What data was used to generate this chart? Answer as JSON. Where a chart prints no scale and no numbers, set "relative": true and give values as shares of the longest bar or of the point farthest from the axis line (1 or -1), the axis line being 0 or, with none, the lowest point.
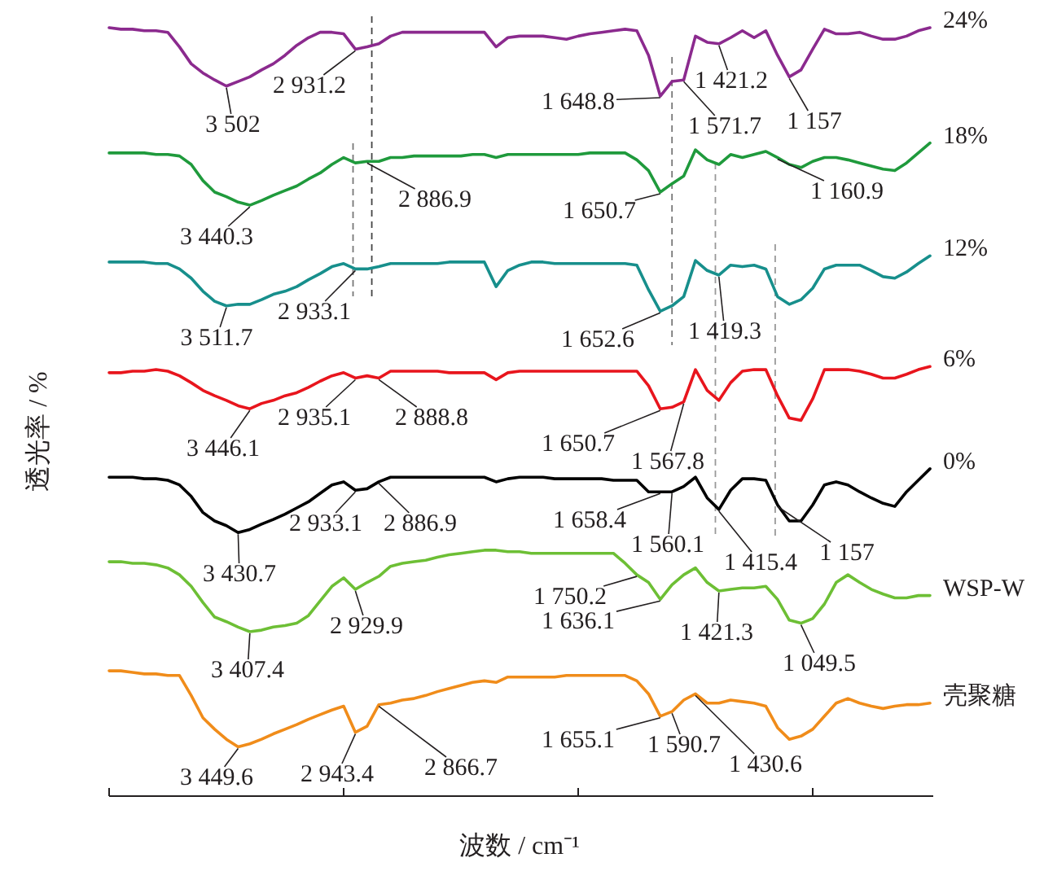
{
  "chart_data": {
    "type": "line",
    "xlabel": "波数 / cm⁻¹",
    "ylabel": "透光率 / %",
    "relative": true,
    "grid": false,
    "legend": false,
    "marker": "none",
    "line_style": "solid",
    "categories": [
      null,
      null,
      null,
      null,
      null,
      null,
      null,
      null,
      null,
      null,
      null,
      null,
      null,
      null,
      null,
      null,
      null,
      null,
      null,
      null,
      null,
      null,
      null,
      null,
      null,
      null,
      null,
      null,
      null,
      null,
      null,
      null,
      null,
      null,
      null,
      null,
      null,
      null,
      null,
      null,
      null,
      null,
      null,
      null,
      null,
      null,
      null,
      null,
      null,
      null,
      null,
      null,
      null,
      null,
      null,
      null,
      null,
      null,
      null,
      null,
      null,
      null,
      null,
      null,
      null,
      null,
      null,
      null,
      null,
      null,
      null
    ],
    "series": [
      {
        "name": "24%",
        "color": "#8b2a8e",
        "values": [
          1.0,
          0.998,
          0.998,
          0.996,
          0.996,
          0.994,
          0.975,
          0.953,
          0.941,
          0.932,
          0.924,
          0.93,
          0.936,
          0.945,
          0.953,
          0.964,
          0.977,
          0.987,
          0.994,
          0.994,
          0.992,
          0.972,
          0.975,
          0.979,
          0.989,
          0.994,
          0.994,
          0.994,
          0.994,
          0.994,
          0.994,
          0.994,
          0.994,
          0.975,
          0.987,
          0.989,
          0.989,
          0.989,
          0.987,
          0.985,
          0.989,
          0.992,
          0.994,
          0.996,
          0.998,
          0.996,
          0.964,
          0.911,
          0.93,
          0.932,
          0.989,
          0.981,
          0.979,
          0.987,
          0.996,
          0.987,
          0.996,
          0.964,
          0.936,
          0.945,
          0.972,
          0.998,
          0.992,
          0.992,
          0.994,
          0.989,
          0.985,
          0.985,
          0.989,
          0.996,
          1.0
        ]
      },
      {
        "name": "18%",
        "color": "#1f9a3c",
        "values": [
          0.837,
          0.837,
          0.837,
          0.837,
          0.835,
          0.835,
          0.833,
          0.822,
          0.801,
          0.786,
          0.78,
          0.773,
          0.769,
          0.775,
          0.782,
          0.788,
          0.794,
          0.803,
          0.811,
          0.822,
          0.831,
          0.824,
          0.826,
          0.826,
          0.831,
          0.831,
          0.833,
          0.833,
          0.833,
          0.833,
          0.833,
          0.835,
          0.835,
          0.831,
          0.835,
          0.835,
          0.835,
          0.835,
          0.835,
          0.835,
          0.835,
          0.837,
          0.837,
          0.837,
          0.837,
          0.828,
          0.814,
          0.786,
          0.797,
          0.807,
          0.841,
          0.828,
          0.822,
          0.835,
          0.831,
          0.835,
          0.839,
          0.831,
          0.822,
          0.818,
          0.826,
          0.831,
          0.831,
          0.828,
          0.824,
          0.82,
          0.816,
          0.814,
          0.824,
          0.837,
          0.85
        ]
      },
      {
        "name": "12%",
        "color": "#178f8c",
        "values": [
          0.695,
          0.695,
          0.695,
          0.695,
          0.693,
          0.693,
          0.686,
          0.674,
          0.657,
          0.644,
          0.638,
          0.64,
          0.64,
          0.646,
          0.653,
          0.657,
          0.663,
          0.672,
          0.68,
          0.689,
          0.693,
          0.686,
          0.686,
          0.689,
          0.693,
          0.693,
          0.693,
          0.693,
          0.693,
          0.695,
          0.695,
          0.695,
          0.695,
          0.663,
          0.684,
          0.691,
          0.695,
          0.695,
          0.693,
          0.693,
          0.693,
          0.693,
          0.693,
          0.693,
          0.693,
          0.691,
          0.659,
          0.631,
          0.638,
          0.65,
          0.697,
          0.684,
          0.678,
          0.691,
          0.689,
          0.691,
          0.686,
          0.65,
          0.64,
          0.646,
          0.661,
          0.686,
          0.691,
          0.691,
          0.691,
          0.684,
          0.676,
          0.674,
          0.682,
          0.693,
          0.703
        ]
      },
      {
        "name": "6%",
        "color": "#e8151d",
        "values": [
          0.551,
          0.551,
          0.553,
          0.553,
          0.555,
          0.553,
          0.547,
          0.538,
          0.528,
          0.521,
          0.515,
          0.508,
          0.504,
          0.511,
          0.515,
          0.521,
          0.525,
          0.532,
          0.54,
          0.547,
          0.551,
          0.544,
          0.547,
          0.544,
          0.553,
          0.553,
          0.553,
          0.553,
          0.553,
          0.551,
          0.551,
          0.551,
          0.551,
          0.542,
          0.551,
          0.553,
          0.553,
          0.553,
          0.553,
          0.553,
          0.553,
          0.553,
          0.553,
          0.553,
          0.553,
          0.553,
          0.534,
          0.504,
          0.506,
          0.513,
          0.555,
          0.528,
          0.515,
          0.538,
          0.553,
          0.555,
          0.555,
          0.521,
          0.492,
          0.489,
          0.517,
          0.555,
          0.555,
          0.555,
          0.553,
          0.549,
          0.544,
          0.544,
          0.549,
          0.555,
          0.559
        ]
      },
      {
        "name": "0%",
        "color": "#000000",
        "values": [
          0.415,
          0.415,
          0.415,
          0.413,
          0.413,
          0.411,
          0.405,
          0.39,
          0.369,
          0.358,
          0.352,
          0.343,
          0.347,
          0.354,
          0.36,
          0.367,
          0.375,
          0.383,
          0.394,
          0.405,
          0.409,
          0.398,
          0.4,
          0.409,
          0.415,
          0.415,
          0.415,
          0.415,
          0.415,
          0.415,
          0.415,
          0.415,
          0.415,
          0.409,
          0.413,
          0.415,
          0.415,
          0.415,
          0.413,
          0.413,
          0.413,
          0.413,
          0.413,
          0.411,
          0.411,
          0.411,
          0.396,
          0.396,
          0.396,
          0.403,
          0.415,
          0.388,
          0.373,
          0.398,
          0.413,
          0.413,
          0.411,
          0.379,
          0.358,
          0.358,
          0.379,
          0.405,
          0.409,
          0.405,
          0.396,
          0.388,
          0.381,
          0.377,
          0.396,
          0.411,
          0.426
        ]
      },
      {
        "name": "WSP-W",
        "color": "#6dbf35",
        "values": [
          0.305,
          0.305,
          0.303,
          0.303,
          0.301,
          0.297,
          0.288,
          0.273,
          0.252,
          0.233,
          0.227,
          0.22,
          0.214,
          0.216,
          0.22,
          0.222,
          0.225,
          0.235,
          0.254,
          0.273,
          0.284,
          0.269,
          0.278,
          0.286,
          0.299,
          0.303,
          0.305,
          0.307,
          0.311,
          0.314,
          0.316,
          0.318,
          0.32,
          0.32,
          0.318,
          0.318,
          0.316,
          0.316,
          0.316,
          0.316,
          0.316,
          0.316,
          0.316,
          0.316,
          0.303,
          0.288,
          0.278,
          0.256,
          0.275,
          0.288,
          0.297,
          0.278,
          0.267,
          0.269,
          0.271,
          0.271,
          0.273,
          0.256,
          0.229,
          0.225,
          0.231,
          0.25,
          0.278,
          0.288,
          0.278,
          0.269,
          0.263,
          0.258,
          0.258,
          0.261,
          0.261
        ]
      },
      {
        "name": "壳聚糖",
        "color": "#f08c1a",
        "values": [
          0.163,
          0.163,
          0.161,
          0.159,
          0.159,
          0.157,
          0.157,
          0.131,
          0.102,
          0.087,
          0.074,
          0.064,
          0.068,
          0.074,
          0.081,
          0.087,
          0.093,
          0.1,
          0.106,
          0.112,
          0.117,
          0.083,
          0.091,
          0.119,
          0.121,
          0.125,
          0.127,
          0.131,
          0.136,
          0.14,
          0.144,
          0.148,
          0.15,
          0.148,
          0.155,
          0.155,
          0.155,
          0.155,
          0.155,
          0.157,
          0.157,
          0.157,
          0.157,
          0.157,
          0.157,
          0.15,
          0.133,
          0.104,
          0.11,
          0.125,
          0.133,
          0.121,
          0.121,
          0.125,
          0.123,
          0.121,
          0.117,
          0.089,
          0.074,
          0.078,
          0.087,
          0.104,
          0.121,
          0.127,
          0.121,
          0.117,
          0.114,
          0.117,
          0.119,
          0.119,
          0.121
        ]
      }
    ],
    "annotations": [
      "3 502",
      "2 931.2",
      "1 648.8",
      "1 571.7",
      "1 421.2",
      "1 157",
      "3 440.3",
      "2 886.9",
      "1 650.7",
      "1 160.9",
      "3 511.7",
      "2 933.1",
      "1 652.6",
      "1 419.3",
      "3 446.1",
      "2 935.1",
      "2 888.8",
      "1 650.7",
      "1 567.8",
      "3 430.7",
      "2 933.1",
      "2 886.9",
      "1 658.4",
      "1 560.1",
      "1 415.4",
      "1 157",
      "3 407.4",
      "2 929.9",
      "1 750.2",
      "1 636.1",
      "1 421.3",
      "1 049.5",
      "3 449.6",
      "2 943.4",
      "2 866.7",
      "1 655.1",
      "1 590.7",
      "1 430.6"
    ]
  }
}
